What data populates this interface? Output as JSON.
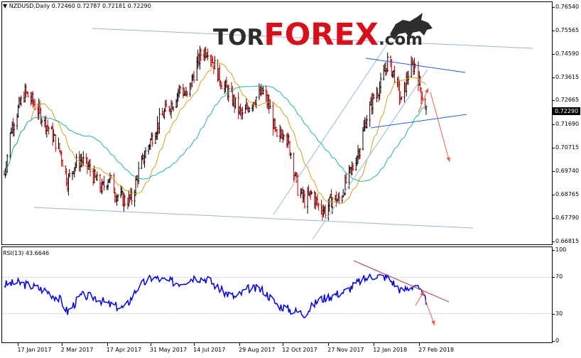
{
  "chart_header": {
    "symbol_label": "NZDUSD,Daily",
    "ohlc": "0.72460 0.72787 0.72181 0.72290"
  },
  "rsi_header": {
    "label": "RSI(13) 43.6646"
  },
  "watermark": {
    "part1": "TOR",
    "part2": "FOREX",
    "part3": ".com"
  },
  "current_price": "0.72290",
  "price_axis": [
    "0.76540",
    "0.75565",
    "0.74590",
    "0.73615",
    "0.72665",
    "0.71690",
    "0.70715",
    "0.69740",
    "0.68765",
    "0.67790",
    "0.66815"
  ],
  "rsi_axis": [
    "100",
    "70",
    "30",
    "0"
  ],
  "time_axis": [
    "17 Jan 2017",
    "2 Mar 2017",
    "17 Apr 2017",
    "31 May 2017",
    "14 Jul 2017",
    "29 Aug 2017",
    "12 Oct 2017",
    "27 Nov 2017",
    "12 Jan 2018",
    "27 Feb 2018"
  ],
  "colors": {
    "bull": "#000000",
    "bear": "#c00000",
    "ma_fast": "#d4a017",
    "ma_slow": "#20b2aa",
    "channel": "#9bb7d0",
    "trendline": "#1f5fd6",
    "forecast_arrow": "#f05a4a",
    "rsi_line": "#0000e6",
    "rsi_trend": "#b05050"
  },
  "chart_data": {
    "type": "candlestick",
    "instrument": "NZDUSD",
    "timeframe": "Daily",
    "ylim": [
      0.66815,
      0.7654
    ],
    "last": {
      "open": 0.7246,
      "high": 0.72787,
      "low": 0.72181,
      "close": 0.7229
    },
    "close_path": [
      [
        "2017-01-03",
        0.696
      ],
      [
        "2017-01-10",
        0.715
      ],
      [
        "2017-01-17",
        0.723
      ],
      [
        "2017-01-24",
        0.73
      ],
      [
        "2017-02-01",
        0.726
      ],
      [
        "2017-02-10",
        0.72
      ],
      [
        "2017-02-20",
        0.713
      ],
      [
        "2017-03-01",
        0.705
      ],
      [
        "2017-03-08",
        0.693
      ],
      [
        "2017-03-15",
        0.7
      ],
      [
        "2017-03-22",
        0.702
      ],
      [
        "2017-03-29",
        0.699
      ],
      [
        "2017-04-05",
        0.694
      ],
      [
        "2017-04-12",
        0.69
      ],
      [
        "2017-04-19",
        0.695
      ],
      [
        "2017-04-26",
        0.688
      ],
      [
        "2017-05-05",
        0.685
      ],
      [
        "2017-05-12",
        0.686
      ],
      [
        "2017-05-19",
        0.697
      ],
      [
        "2017-05-26",
        0.705
      ],
      [
        "2017-06-02",
        0.712
      ],
      [
        "2017-06-09",
        0.718
      ],
      [
        "2017-06-16",
        0.723
      ],
      [
        "2017-06-23",
        0.726
      ],
      [
        "2017-06-30",
        0.732
      ],
      [
        "2017-07-07",
        0.728
      ],
      [
        "2017-07-14",
        0.738
      ],
      [
        "2017-07-21",
        0.746
      ],
      [
        "2017-07-28",
        0.748
      ],
      [
        "2017-08-04",
        0.741
      ],
      [
        "2017-08-11",
        0.734
      ],
      [
        "2017-08-18",
        0.73
      ],
      [
        "2017-08-25",
        0.725
      ],
      [
        "2017-09-01",
        0.72
      ],
      [
        "2017-09-08",
        0.725
      ],
      [
        "2017-09-15",
        0.728
      ],
      [
        "2017-09-22",
        0.73
      ],
      [
        "2017-09-29",
        0.723
      ],
      [
        "2017-10-06",
        0.71
      ],
      [
        "2017-10-13",
        0.715
      ],
      [
        "2017-10-20",
        0.705
      ],
      [
        "2017-10-27",
        0.69
      ],
      [
        "2017-11-03",
        0.685
      ],
      [
        "2017-11-10",
        0.688
      ],
      [
        "2017-11-17",
        0.683
      ],
      [
        "2017-11-24",
        0.681
      ],
      [
        "2017-12-01",
        0.686
      ],
      [
        "2017-12-08",
        0.685
      ],
      [
        "2017-12-15",
        0.693
      ],
      [
        "2017-12-22",
        0.699
      ],
      [
        "2017-12-29",
        0.708
      ],
      [
        "2018-01-05",
        0.72
      ],
      [
        "2018-01-12",
        0.728
      ],
      [
        "2018-01-19",
        0.733
      ],
      [
        "2018-01-26",
        0.743
      ],
      [
        "2018-02-02",
        0.737
      ],
      [
        "2018-02-09",
        0.726
      ],
      [
        "2018-02-16",
        0.738
      ],
      [
        "2018-02-23",
        0.742
      ],
      [
        "2018-03-01",
        0.73
      ],
      [
        "2018-03-06",
        0.7229
      ]
    ],
    "rsi_path": [
      [
        "2017-01-03",
        62
      ],
      [
        "2017-01-17",
        64
      ],
      [
        "2017-02-01",
        60
      ],
      [
        "2017-02-15",
        55
      ],
      [
        "2017-03-01",
        45
      ],
      [
        "2017-03-08",
        32
      ],
      [
        "2017-03-22",
        50
      ],
      [
        "2017-04-05",
        48
      ],
      [
        "2017-04-19",
        40
      ],
      [
        "2017-05-05",
        36
      ],
      [
        "2017-05-19",
        60
      ],
      [
        "2017-06-02",
        70
      ],
      [
        "2017-06-16",
        66
      ],
      [
        "2017-06-30",
        64
      ],
      [
        "2017-07-14",
        70
      ],
      [
        "2017-07-28",
        68
      ],
      [
        "2017-08-11",
        55
      ],
      [
        "2017-08-25",
        48
      ],
      [
        "2017-09-08",
        58
      ],
      [
        "2017-09-22",
        56
      ],
      [
        "2017-10-06",
        40
      ],
      [
        "2017-10-20",
        34
      ],
      [
        "2017-11-03",
        30
      ],
      [
        "2017-11-17",
        45
      ],
      [
        "2017-12-01",
        50
      ],
      [
        "2017-12-15",
        55
      ],
      [
        "2017-12-29",
        66
      ],
      [
        "2018-01-12",
        72
      ],
      [
        "2018-01-26",
        70
      ],
      [
        "2018-02-09",
        55
      ],
      [
        "2018-02-23",
        62
      ],
      [
        "2018-03-06",
        43.66
      ]
    ]
  }
}
